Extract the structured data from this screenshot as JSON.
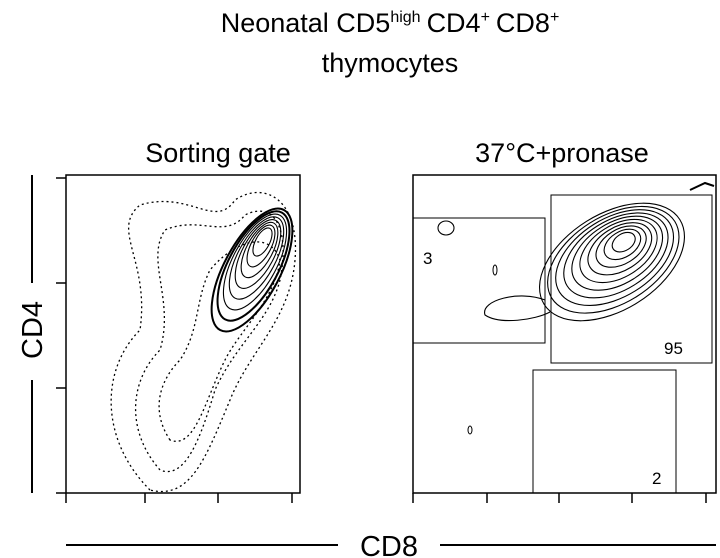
{
  "figure": {
    "title": {
      "line1": [
        {
          "text": "Neonatal CD5",
          "sup": false
        },
        {
          "text": "high",
          "sup": true
        },
        {
          "text": "CD4",
          "sup": false
        },
        {
          "text": "+",
          "sup": true
        },
        {
          "text": "CD8",
          "sup": false
        },
        {
          "text": "+",
          "sup": true
        }
      ],
      "line2": "thymocytes"
    },
    "y_label": "CD4",
    "x_label": "CD8",
    "panels": [
      {
        "title": "Sorting gate",
        "gates": []
      },
      {
        "title": "37°C+pronase",
        "gates": [
          {
            "label": "3"
          },
          {
            "label": "95"
          },
          {
            "label": "2"
          }
        ]
      }
    ]
  }
}
